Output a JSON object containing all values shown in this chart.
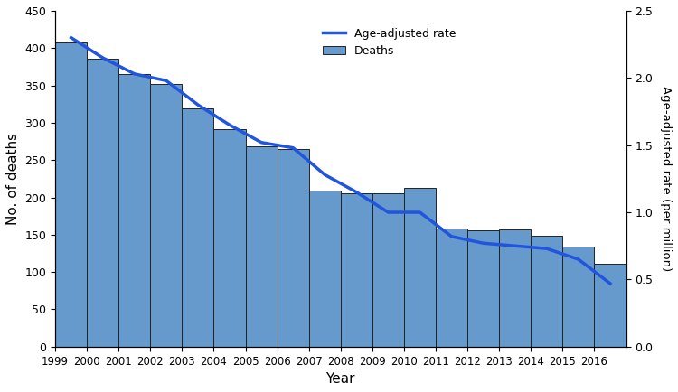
{
  "years": [
    1999,
    2000,
    2001,
    2002,
    2003,
    2004,
    2005,
    2006,
    2007,
    2008,
    2009,
    2010,
    2011,
    2012,
    2013,
    2014,
    2015,
    2016
  ],
  "deaths": [
    408,
    386,
    365,
    352,
    319,
    291,
    269,
    265,
    209,
    205,
    205,
    213,
    158,
    156,
    157,
    149,
    134,
    111
  ],
  "age_adjusted_rate": [
    2.3,
    2.15,
    2.03,
    1.98,
    1.8,
    1.65,
    1.52,
    1.48,
    1.28,
    1.15,
    1.0,
    1.0,
    0.82,
    0.77,
    0.75,
    0.73,
    0.65,
    0.47
  ],
  "bar_color": "#6699CC",
  "bar_edgecolor": "#222222",
  "line_color": "#2255DD",
  "ylabel_left": "No. of deaths",
  "ylabel_right": "Age-adjusted rate (per million)",
  "xlabel": "Year",
  "legend_rate_label": "Age-adjusted rate",
  "legend_deaths_label": "Deaths",
  "ylim_left": [
    0,
    450
  ],
  "ylim_right": [
    0,
    2.5
  ],
  "yticks_left": [
    0,
    50,
    100,
    150,
    200,
    250,
    300,
    350,
    400,
    450
  ],
  "yticks_right": [
    0,
    0.5,
    1.0,
    1.5,
    2.0,
    2.5
  ],
  "line_width": 2.5,
  "figsize": [
    7.5,
    4.34
  ],
  "dpi": 100
}
